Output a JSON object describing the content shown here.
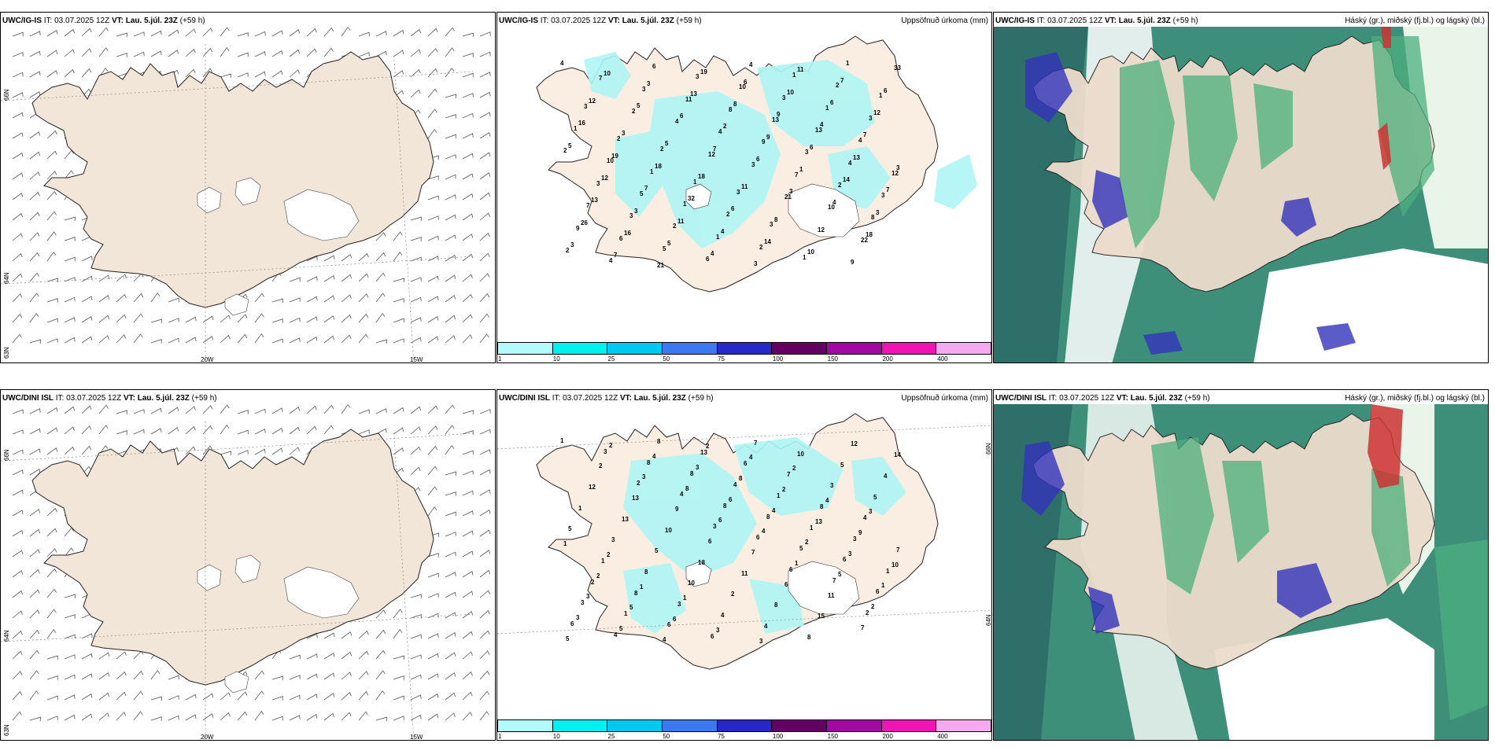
{
  "rows": [
    {
      "model": "UWC/IG-IS",
      "it_label": "IT:",
      "it_value": "03.07.2025 12Z",
      "vt_label": "VT:",
      "vt_value": "Lau. 5.júl. 23Z",
      "lead": "(+59 h)"
    },
    {
      "model": "UWC/DINI ISL",
      "it_label": "IT:",
      "it_value": "03.07.2025 12Z",
      "vt_label": "VT:",
      "vt_value": "Lau. 5.júl. 23Z",
      "lead": "(+59 h)"
    }
  ],
  "precip_title": "Uppsöfnuð úrkoma (mm)",
  "cloud_title": "Háský (gr.), miðský (fj.bl.) og lágský (bl.)",
  "graticule": {
    "lat66": "66N",
    "lat64": "64N",
    "lat63": "63N",
    "lon20": "20W",
    "lon15": "15W"
  },
  "colorbar": {
    "ticks": [
      "1",
      "10",
      "25",
      "50",
      "75",
      "100",
      "150",
      "200",
      "400"
    ],
    "colors": [
      "#b3fafa",
      "#00f0f0",
      "#00c8f0",
      "#3c78f0",
      "#2828c8",
      "#640064",
      "#a00aa0",
      "#f014b4",
      "#f5aaf0"
    ]
  },
  "precip_values_top": [
    "4",
    "5",
    "7",
    "3",
    "18",
    "10",
    "6",
    "6",
    "4",
    "3",
    "3",
    "2",
    "1",
    "3",
    "7",
    "13",
    "9",
    "14",
    "26",
    "21",
    "8",
    "6",
    "7",
    "16",
    "19",
    "9",
    "13",
    "13",
    "5",
    "6",
    "4",
    "3",
    "3",
    "4",
    "10",
    "7",
    "12",
    "11",
    "3",
    "6",
    "5",
    "7",
    "4",
    "11",
    "12",
    "19",
    "32",
    "14",
    "7",
    "16",
    "18",
    "6",
    "10",
    "6",
    "3",
    "18",
    "8",
    "9",
    "12",
    "5",
    "11",
    "12",
    "33",
    "2",
    "12",
    "21",
    "22",
    "7",
    "4",
    "3",
    "10",
    "2",
    "3",
    "4",
    "7",
    "8",
    "4",
    "11",
    "9",
    "2",
    "9",
    "6",
    "8",
    "3",
    "3",
    "6",
    "3",
    "13",
    "4",
    "7",
    "5",
    "10",
    "13",
    "12",
    "3",
    "6",
    "3",
    "4",
    "3",
    "2",
    "4",
    "1",
    "2",
    "5",
    "1",
    "1",
    "3",
    "10",
    "1",
    "2",
    "2",
    "1",
    "1",
    "2",
    "1",
    "1",
    "2",
    "1",
    "3",
    "1",
    "3",
    "2",
    "3"
  ],
  "precip_values_bottom": [
    "1",
    "2",
    "3",
    "6",
    "2",
    "3",
    "4",
    "6",
    "7",
    "6",
    "8",
    "8",
    "5",
    "6",
    "4",
    "8",
    "8",
    "6",
    "3",
    "8",
    "4",
    "1",
    "1",
    "1",
    "13",
    "1",
    "3",
    "2",
    "6",
    "6",
    "8",
    "7",
    "8",
    "6",
    "7",
    "4",
    "1",
    "3",
    "7",
    "3",
    "5",
    "8",
    "4",
    "10",
    "5",
    "3",
    "10",
    "4",
    "5",
    "1",
    "5",
    "2",
    "8",
    "4",
    "13",
    "18",
    "8",
    "12",
    "12",
    "10",
    "11",
    "15",
    "14",
    "13",
    "6",
    "6",
    "7",
    "2",
    "9",
    "7",
    "11",
    "5",
    "3",
    "6",
    "1",
    "2",
    "2",
    "8",
    "4",
    "5",
    "3",
    "4",
    "6",
    "2",
    "1",
    "5",
    "3",
    "4",
    "3",
    "3",
    "4",
    "8",
    "13",
    "10",
    "5",
    "2",
    "2",
    "9",
    "2",
    "6",
    "4",
    "4",
    "1",
    "1",
    "3",
    "2",
    "3",
    "2",
    "1",
    "3"
  ]
}
